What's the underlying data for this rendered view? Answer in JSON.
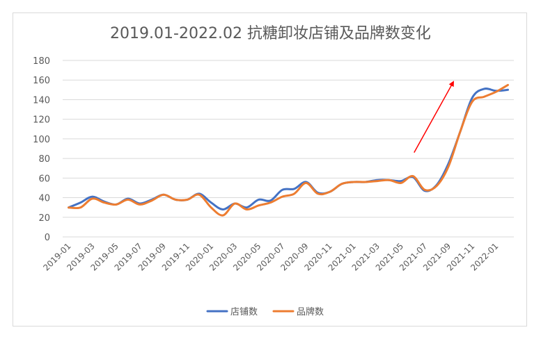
{
  "chart_data": {
    "type": "line",
    "title": "2019.01-2022.02 抗糖卸妆店铺及品牌数变化",
    "xlabel": "",
    "ylabel": "",
    "ylim": [
      0,
      180
    ],
    "yticks": [
      0,
      20,
      40,
      60,
      80,
      100,
      120,
      140,
      160,
      180
    ],
    "grid": true,
    "legend_position": "bottom",
    "x": [
      "2019-01",
      "2019-02",
      "2019-03",
      "2019-04",
      "2019-05",
      "2019-06",
      "2019-07",
      "2019-08",
      "2019-09",
      "2019-10",
      "2019-11",
      "2019-12",
      "2020-01",
      "2020-02",
      "2020-03",
      "2020-04",
      "2020-05",
      "2020-06",
      "2020-07",
      "2020-08",
      "2020-09",
      "2020-10",
      "2020-11",
      "2020-12",
      "2021-01",
      "2021-02",
      "2021-03",
      "2021-04",
      "2021-05",
      "2021-06",
      "2021-07",
      "2021-08",
      "2021-09",
      "2021-10",
      "2021-11",
      "2021-12",
      "2022-01",
      "2022-02"
    ],
    "xtick_labels": [
      "2019-01",
      "2019-03",
      "2019-05",
      "2019-07",
      "2019-09",
      "2019-11",
      "2020-01",
      "2020-03",
      "2020-05",
      "2020-07",
      "2020-09",
      "2020-11",
      "2021-01",
      "2021-03",
      "2021-05",
      "2021-07",
      "2021-09",
      "2021-11",
      "2022-01"
    ],
    "series": [
      {
        "name": "店铺数",
        "color": "#4472C4",
        "values": [
          30,
          35,
          41,
          36,
          33,
          39,
          34,
          38,
          43,
          38,
          38,
          44,
          35,
          28,
          34,
          30,
          38,
          37,
          48,
          49,
          56,
          45,
          46,
          54,
          56,
          56,
          58,
          58,
          57,
          61,
          47,
          53,
          75,
          108,
          142,
          151,
          149,
          150
        ]
      },
      {
        "name": "品牌数",
        "color": "#ED7D31",
        "values": [
          30,
          30,
          39,
          35,
          33,
          38,
          33,
          37,
          43,
          38,
          38,
          43,
          30,
          22,
          34,
          28,
          32,
          35,
          41,
          44,
          55,
          44,
          46,
          54,
          56,
          56,
          57,
          58,
          55,
          62,
          48,
          52,
          72,
          108,
          138,
          143,
          148,
          155
        ]
      }
    ],
    "annotations": [
      {
        "type": "arrow",
        "color": "#FF0000",
        "from": {
          "x_index": 29.1,
          "y": 86
        },
        "to": {
          "x_index": 32.4,
          "y": 158
        }
      }
    ]
  }
}
